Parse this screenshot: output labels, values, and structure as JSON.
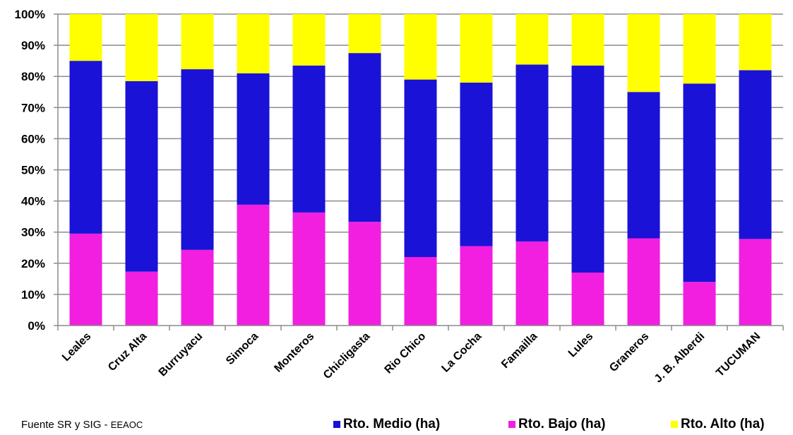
{
  "chart_data": {
    "type": "bar",
    "stacked": true,
    "percent": true,
    "categories": [
      "Leales",
      "Cruz Alta",
      "Burruyacu",
      "Simoca",
      "Monteros",
      "Chicligasta",
      "Rio Chico",
      "La Cocha",
      "Famailla",
      "Lules",
      "Graneros",
      "J. B. Alberdi",
      "TUCUMAN"
    ],
    "series": [
      {
        "name": "Rto. Bajo (ha)",
        "color": "#f21fe0",
        "values": [
          29.5,
          17.3,
          24.3,
          38.8,
          36.3,
          33.3,
          22.0,
          25.5,
          27.0,
          17.0,
          28.0,
          14.0,
          27.8
        ]
      },
      {
        "name": "Rto. Medio (ha)",
        "color": "#1a12d6",
        "values": [
          55.5,
          61.2,
          58.0,
          42.2,
          47.2,
          54.2,
          57.0,
          52.5,
          56.8,
          66.5,
          47.0,
          63.7,
          54.2
        ]
      },
      {
        "name": "Rto. Alto (ha)",
        "color": "#ffff00",
        "values": [
          15.0,
          21.5,
          17.7,
          19.0,
          16.5,
          12.5,
          21.0,
          22.0,
          16.2,
          16.5,
          25.0,
          22.3,
          18.0
        ]
      }
    ],
    "y_ticks": [
      "0%",
      "10%",
      "20%",
      "30%",
      "40%",
      "50%",
      "60%",
      "70%",
      "80%",
      "90%",
      "100%"
    ],
    "ylim": [
      0,
      100
    ],
    "grid": true,
    "legend_position": "bottom-right",
    "legend": [
      {
        "label": "Rto. Medio (ha)",
        "color": "#1a12d6"
      },
      {
        "label": "Rto. Bajo (ha)",
        "color": "#f21fe0"
      },
      {
        "label": "Rto. Alto (ha)",
        "color": "#ffff00"
      }
    ]
  },
  "source_note": {
    "main": "Fuente SR y SIG - ",
    "org": "EEAOC"
  }
}
